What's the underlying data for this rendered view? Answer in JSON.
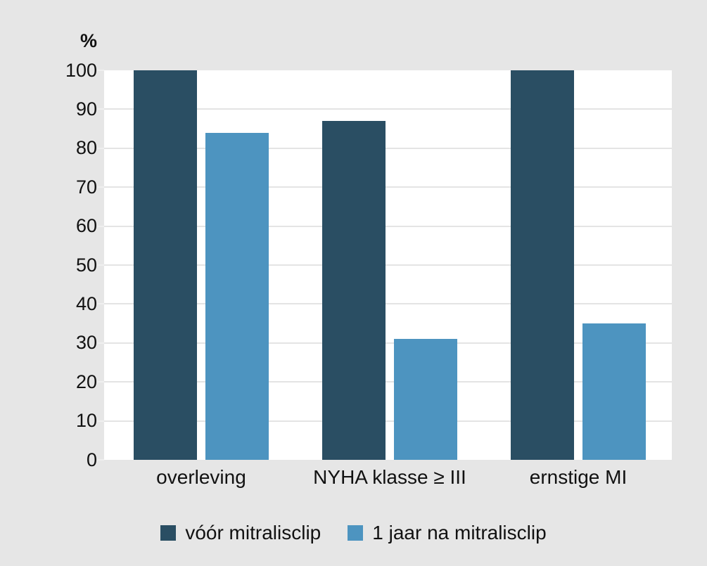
{
  "chart_data": {
    "type": "bar",
    "title": "",
    "ylabel": "%",
    "xlabel": "",
    "ylim": [
      0,
      100
    ],
    "yticks": [
      0,
      10,
      20,
      30,
      40,
      50,
      60,
      70,
      80,
      90,
      100
    ],
    "grid": true,
    "legend_position": "bottom",
    "categories": [
      "overleving",
      "NYHA klasse ≥ III",
      "ernstige MI"
    ],
    "series": [
      {
        "name": "vóór mitralisclip",
        "color": "#2a4e63",
        "values": [
          100,
          87,
          100
        ]
      },
      {
        "name": "1 jaar na mitralisclip",
        "color": "#4d94c0",
        "values": [
          84,
          31,
          35
        ]
      }
    ]
  },
  "colors": {
    "background": "#e6e6e6",
    "plot_background": "#ffffff",
    "gridline": "#e4e4e4",
    "text": "#111111",
    "series_dark": "#2a4e63",
    "series_light": "#4d94c0"
  },
  "yaxis": {
    "unit_label": "%"
  },
  "legend": {
    "items": [
      {
        "label": "vóór mitralisclip",
        "color": "#2a4e63"
      },
      {
        "label": "1 jaar na mitralisclip",
        "color": "#4d94c0"
      }
    ]
  }
}
